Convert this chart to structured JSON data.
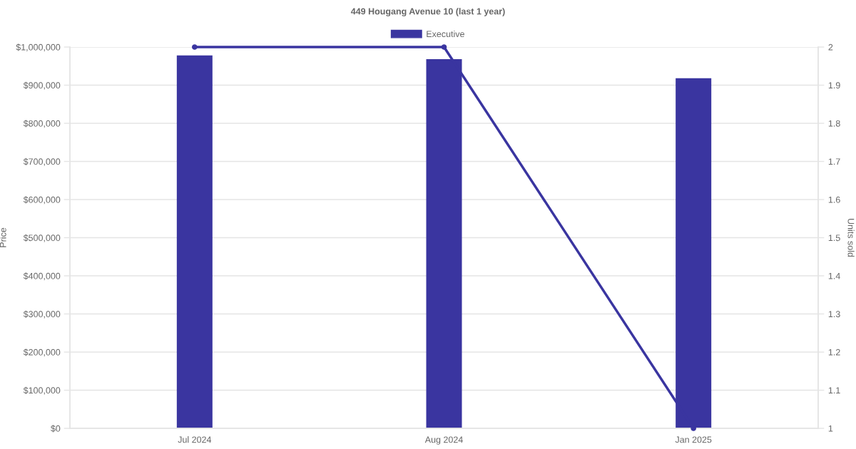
{
  "chart_data": {
    "type": "bar",
    "title": "449 Hougang Avenue 10 (last 1 year)",
    "categories": [
      "Jul 2024",
      "Aug 2024",
      "Jan 2025"
    ],
    "series": [
      {
        "name": "Executive",
        "color": "#3a35a0",
        "values": [
          978000,
          968000,
          918000
        ]
      },
      {
        "type": "line",
        "axis": "y2",
        "color": "#3a35a0",
        "marker": "circle",
        "line_style": "solid",
        "values": [
          2,
          2,
          1
        ]
      }
    ],
    "ylabel": "Price",
    "y2label": "Units sold",
    "ylim": [
      0,
      1000000
    ],
    "yticks": [
      {
        "value": 0,
        "label": "$0"
      },
      {
        "value": 100000,
        "label": "$100,000"
      },
      {
        "value": 200000,
        "label": "$200,000"
      },
      {
        "value": 300000,
        "label": "$300,000"
      },
      {
        "value": 400000,
        "label": "$400,000"
      },
      {
        "value": 500000,
        "label": "$500,000"
      },
      {
        "value": 600000,
        "label": "$600,000"
      },
      {
        "value": 700000,
        "label": "$700,000"
      },
      {
        "value": 800000,
        "label": "$800,000"
      },
      {
        "value": 900000,
        "label": "$900,000"
      },
      {
        "value": 1000000,
        "label": "$1,000,000"
      }
    ],
    "y2lim": [
      1,
      2
    ],
    "y2ticks": [
      1,
      1.1,
      1.2,
      1.3,
      1.4,
      1.5,
      1.6,
      1.7,
      1.8,
      1.9,
      2
    ],
    "grid": "y",
    "legend": "top"
  }
}
